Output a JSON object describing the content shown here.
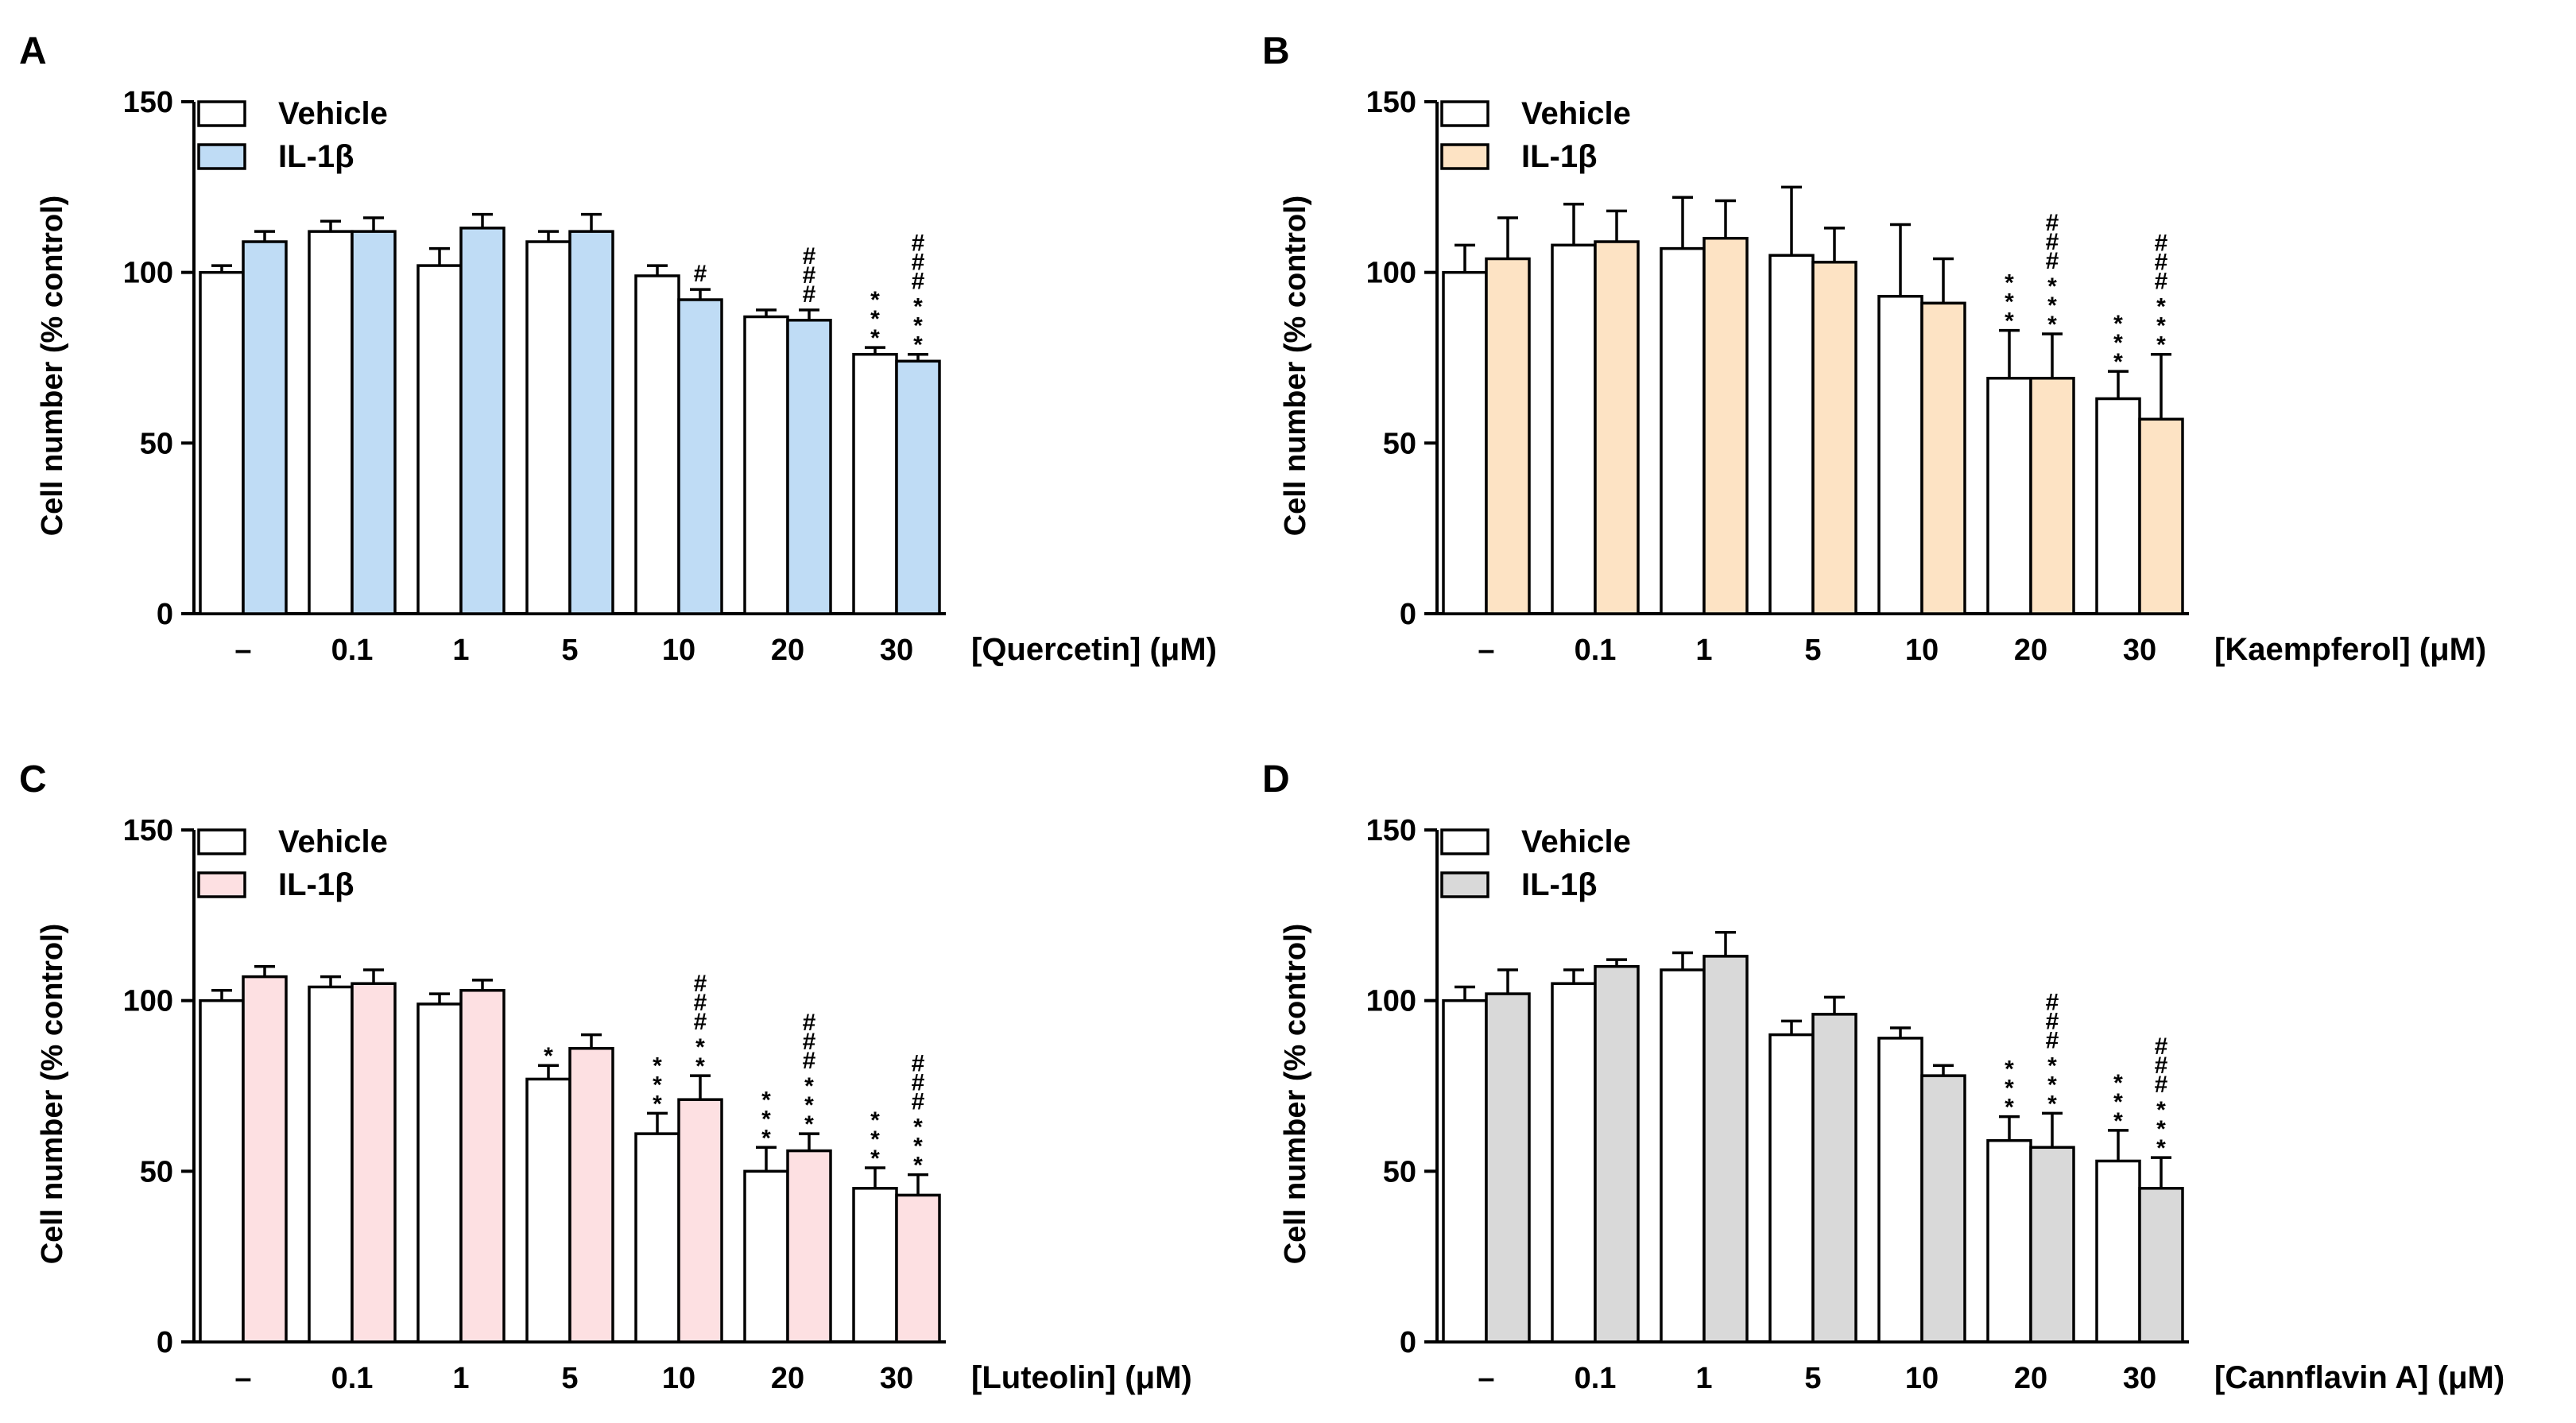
{
  "chart_data": [
    {
      "panel": "A",
      "type": "bar",
      "ylabel": "Cell number (% control)",
      "xlabel": "[Quercetin] (μM)",
      "ylim": [
        0,
        150
      ],
      "yticks": [
        "0",
        "50",
        "100",
        "150"
      ],
      "categories": [
        "–",
        "0.1",
        "1",
        "5",
        "10",
        "20",
        "30"
      ],
      "colors": {
        "vehicle": "#ffffff",
        "il1b": "#bfdcf5"
      },
      "series": [
        {
          "name": "Vehicle",
          "values": [
            100,
            112,
            102,
            109,
            99,
            87,
            76
          ],
          "errors": [
            2,
            3,
            5,
            3,
            3,
            2,
            2
          ],
          "marks": [
            "",
            "",
            "",
            "",
            "",
            "",
            "***"
          ]
        },
        {
          "name": "IL-1β",
          "values": [
            109,
            112,
            113,
            112,
            92,
            86,
            74
          ],
          "errors": [
            3,
            4,
            4,
            5,
            3,
            3,
            2
          ],
          "marks": [
            "",
            "",
            "",
            "",
            "#",
            "###",
            "###***"
          ]
        }
      ]
    },
    {
      "panel": "B",
      "type": "bar",
      "ylabel": "Cell number (% control)",
      "xlabel": "[Kaempferol] (μM)",
      "ylim": [
        0,
        150
      ],
      "yticks": [
        "0",
        "50",
        "100",
        "150"
      ],
      "categories": [
        "–",
        "0.1",
        "1",
        "5",
        "10",
        "20",
        "30"
      ],
      "colors": {
        "vehicle": "#ffffff",
        "il1b": "#fde3c4"
      },
      "series": [
        {
          "name": "Vehicle",
          "values": [
            100,
            108,
            107,
            105,
            93,
            69,
            63
          ],
          "errors": [
            8,
            12,
            15,
            20,
            21,
            14,
            8
          ],
          "marks": [
            "",
            "",
            "",
            "",
            "",
            "***",
            "***"
          ]
        },
        {
          "name": "IL-1β",
          "values": [
            104,
            109,
            110,
            103,
            91,
            69,
            57
          ],
          "errors": [
            12,
            9,
            11,
            10,
            13,
            13,
            19
          ],
          "marks": [
            "",
            "",
            "",
            "",
            "",
            "###***",
            "###***"
          ]
        }
      ]
    },
    {
      "panel": "C",
      "type": "bar",
      "ylabel": "Cell number (% control)",
      "xlabel": "[Luteolin] (μM)",
      "ylim": [
        0,
        150
      ],
      "yticks": [
        "0",
        "50",
        "100",
        "150"
      ],
      "categories": [
        "–",
        "0.1",
        "1",
        "5",
        "10",
        "20",
        "30"
      ],
      "colors": {
        "vehicle": "#ffffff",
        "il1b": "#fde0e2"
      },
      "series": [
        {
          "name": "Vehicle",
          "values": [
            100,
            104,
            99,
            77,
            61,
            50,
            45
          ],
          "errors": [
            3,
            3,
            3,
            4,
            6,
            7,
            6
          ],
          "marks": [
            "",
            "",
            "",
            "*",
            "***",
            "***",
            "***"
          ]
        },
        {
          "name": "IL-1β",
          "values": [
            107,
            105,
            103,
            86,
            71,
            56,
            43
          ],
          "errors": [
            3,
            4,
            3,
            4,
            7,
            5,
            6
          ],
          "marks": [
            "",
            "",
            "",
            "",
            "###**",
            "###***",
            "###***"
          ]
        }
      ]
    },
    {
      "panel": "D",
      "type": "bar",
      "ylabel": "Cell number (% control)",
      "xlabel": "[Cannflavin A] (μM)",
      "ylim": [
        0,
        150
      ],
      "yticks": [
        "0",
        "50",
        "100",
        "150"
      ],
      "categories": [
        "–",
        "0.1",
        "1",
        "5",
        "10",
        "20",
        "30"
      ],
      "colors": {
        "vehicle": "#ffffff",
        "il1b": "#d9d9d9"
      },
      "series": [
        {
          "name": "Vehicle",
          "values": [
            100,
            105,
            109,
            90,
            89,
            59,
            53
          ],
          "errors": [
            4,
            4,
            5,
            4,
            3,
            7,
            9
          ],
          "marks": [
            "",
            "",
            "",
            "",
            "",
            "***",
            "***"
          ]
        },
        {
          "name": "IL-1β",
          "values": [
            102,
            110,
            113,
            96,
            78,
            57,
            45
          ],
          "errors": [
            7,
            2,
            7,
            5,
            3,
            10,
            9
          ],
          "marks": [
            "",
            "",
            "",
            "",
            "",
            "###***",
            "###***"
          ]
        }
      ]
    }
  ]
}
